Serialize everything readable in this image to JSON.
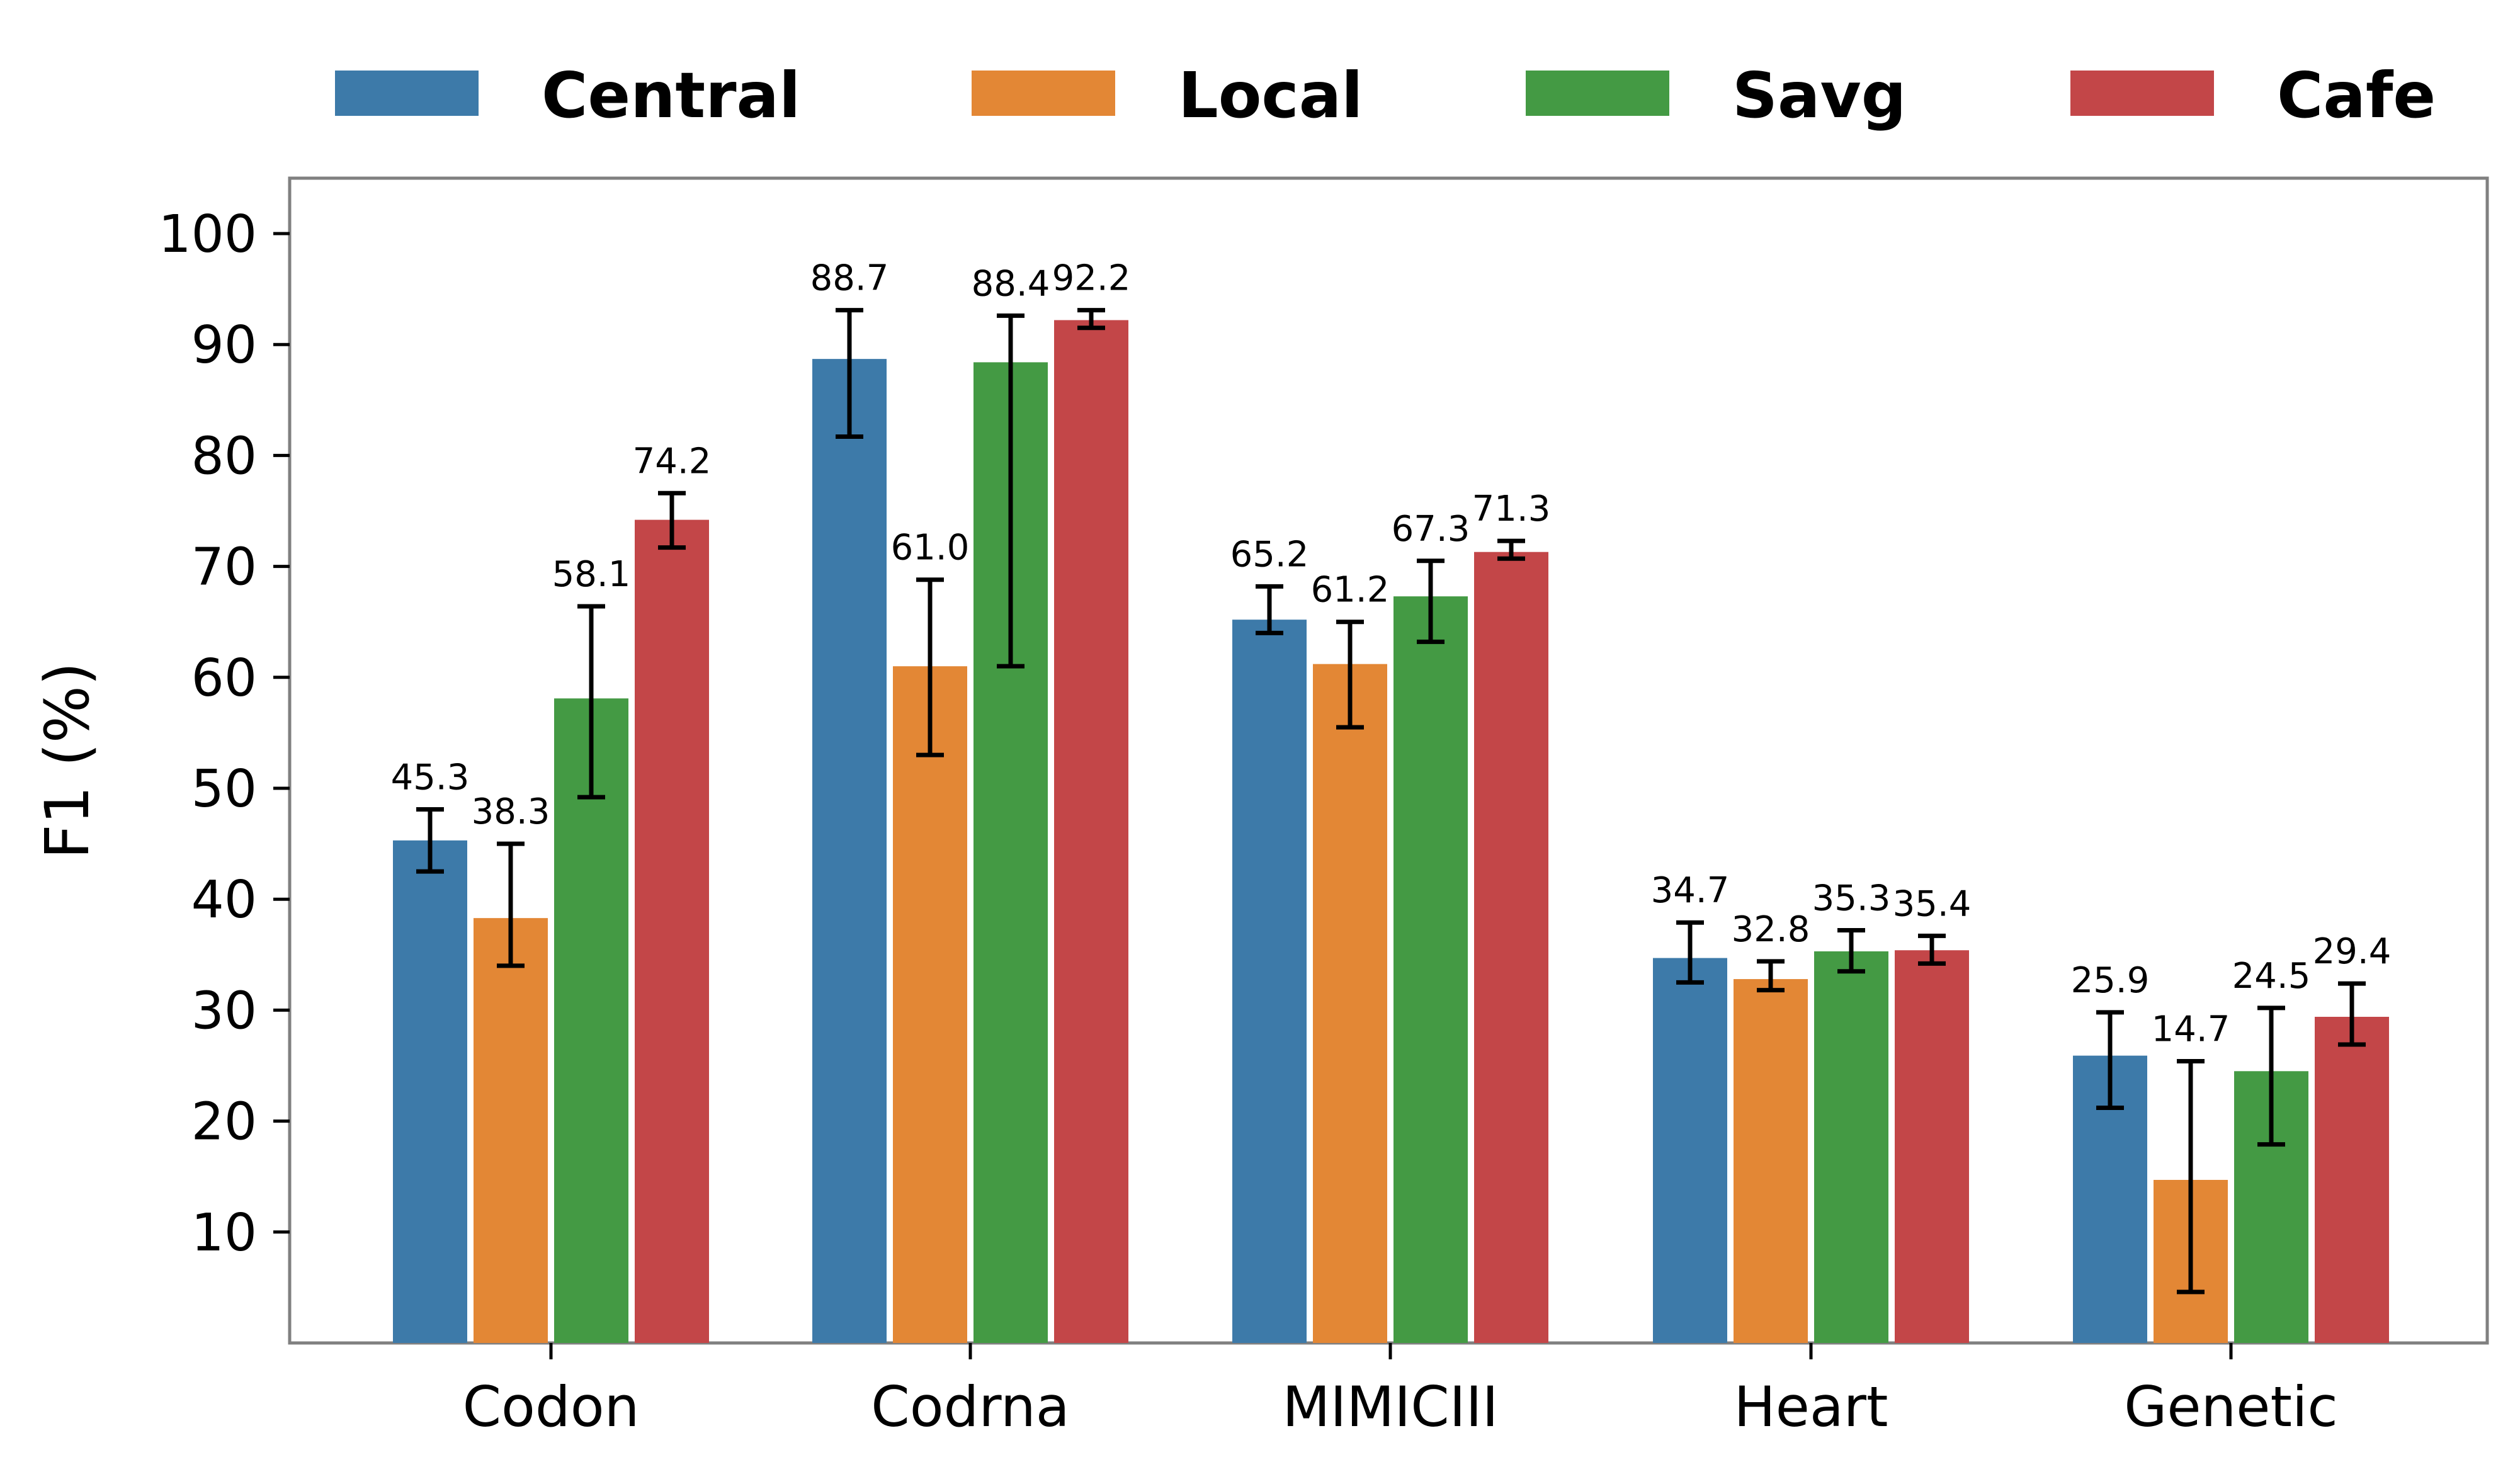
{
  "chart_data": {
    "type": "bar",
    "title": "",
    "xlabel": "",
    "ylabel": "F1 (%)",
    "ylim": [
      0,
      105
    ],
    "yticks": [
      10,
      20,
      30,
      40,
      50,
      60,
      70,
      80,
      90,
      100
    ],
    "grid": false,
    "legend_position": "top",
    "categories": [
      "Codon",
      "Codrna",
      "MIMICIII",
      "Heart",
      "Genetic"
    ],
    "series": [
      {
        "name": "Central",
        "color": "#3d7aa9",
        "values": [
          45.3,
          88.7,
          65.2,
          34.7,
          25.9
        ],
        "labels": [
          "45.3",
          "88.7",
          "65.2",
          "34.7",
          "25.9"
        ],
        "err_low": [
          42.5,
          81.7,
          64.0,
          32.5,
          21.2
        ],
        "err_high": [
          48.1,
          93.1,
          68.2,
          37.9,
          29.8
        ]
      },
      {
        "name": "Local",
        "color": "#e38735",
        "values": [
          38.3,
          61.0,
          61.2,
          32.8,
          14.7
        ],
        "labels": [
          "38.3",
          "61.0",
          "61.2",
          "32.8",
          "14.7"
        ],
        "err_low": [
          34.0,
          53.0,
          55.5,
          31.8,
          4.6
        ],
        "err_high": [
          45.0,
          68.8,
          65.0,
          34.4,
          25.4
        ]
      },
      {
        "name": "Savg",
        "color": "#449a44",
        "values": [
          58.1,
          88.4,
          67.3,
          35.3,
          24.5
        ],
        "labels": [
          "58.1",
          "88.4",
          "67.3",
          "35.3",
          "24.5"
        ],
        "err_low": [
          49.2,
          61.0,
          63.2,
          33.5,
          17.9
        ],
        "err_high": [
          66.4,
          92.6,
          70.5,
          37.2,
          30.2
        ]
      },
      {
        "name": "Cafe",
        "color": "#c34648",
        "values": [
          74.2,
          92.2,
          71.3,
          35.4,
          29.4
        ],
        "labels": [
          "74.2",
          "92.2",
          "71.3",
          "35.4",
          "29.4"
        ],
        "err_low": [
          71.7,
          91.5,
          70.7,
          34.2,
          26.9
        ],
        "err_high": [
          76.6,
          93.1,
          72.3,
          36.7,
          32.4
        ]
      }
    ]
  }
}
